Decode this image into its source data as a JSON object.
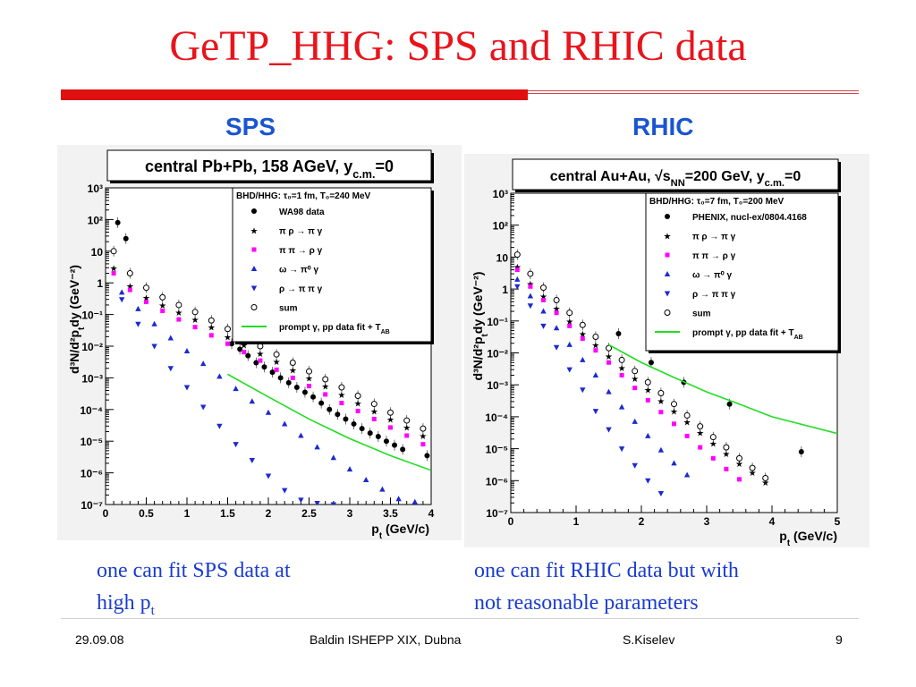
{
  "slide": {
    "title": "GeTP_HHG: SPS and RHIC data",
    "left_label": "SPS",
    "right_label": "RHIC",
    "left_caption_line1": "one can fit SPS data at",
    "left_caption_line2": "high p",
    "left_caption_sub": "t",
    "right_caption_line1": "one can fit RHIC data but with",
    "right_caption_line2": "not reasonable parameters",
    "colors": {
      "title": "#e8141c",
      "label": "#1a55d0",
      "caption": "#1a3cd0"
    }
  },
  "footer": {
    "date": "29.09.08",
    "event": "Baldin ISHEPP XIX, Dubna",
    "author": "S.Kiselev",
    "page": "9"
  },
  "chart_data": [
    {
      "type": "scatter",
      "title": "central Pb+Pb, 158 AGeV, y",
      "title_sub": "c.m.",
      "title_end": "=0",
      "xlabel": "p",
      "xlabel_sub": "t",
      "xlabel_unit": "(GeV/c)",
      "ylabel": "d³N/d²p",
      "ylabel_sub": "t",
      "ylabel_end": "dy (GeV⁻²)",
      "log_y": true,
      "xlim": [
        0,
        4
      ],
      "ylim_exp": [
        -7,
        3
      ],
      "x_ticks": [
        "0",
        "0.5",
        "1",
        "1.5",
        "2",
        "2.5",
        "3",
        "3.5",
        "4"
      ],
      "y_ticks": [
        "10⁻⁷",
        "10⁻⁶",
        "10⁻⁵",
        "10⁻⁴",
        "10⁻³",
        "10⁻²",
        "10⁻¹",
        "1",
        "10",
        "10²",
        "10³"
      ],
      "legend_header": "BHD/HHG: τ₀=1 fm, T₀=240 MeV",
      "series": [
        {
          "name": "WA98 data",
          "marker": "dot",
          "color": "#000000",
          "x": [
            0.15,
            0.25,
            1.55,
            1.65,
            1.75,
            1.85,
            1.95,
            2.05,
            2.15,
            2.25,
            2.35,
            2.45,
            2.55,
            2.65,
            2.75,
            2.85,
            2.95,
            3.05,
            3.15,
            3.25,
            3.35,
            3.45,
            3.55,
            3.65,
            3.95
          ],
          "y": [
            80,
            25,
            0.012,
            0.008,
            0.005,
            0.003,
            0.0022,
            0.0015,
            0.001,
            0.0007,
            0.0005,
            0.00035,
            0.00025,
            0.00016,
            0.0001,
            7e-05,
            5e-05,
            3.5e-05,
            2.5e-05,
            1.8e-05,
            1.4e-05,
            1e-05,
            7.5e-06,
            5.5e-06,
            3.5e-06
          ]
        },
        {
          "name": "π ρ → π γ",
          "marker": "star",
          "color": "#ff00ff",
          "x": [
            0.1,
            0.3,
            0.5,
            0.7,
            0.9,
            1.1,
            1.3,
            1.5,
            1.7,
            1.9,
            2.1,
            2.3,
            2.5,
            2.7,
            2.9,
            3.1,
            3.3,
            3.5,
            3.7,
            3.9
          ],
          "y": [
            3,
            0.8,
            0.35,
            0.2,
            0.12,
            0.07,
            0.04,
            0.02,
            0.011,
            0.006,
            0.0033,
            0.0018,
            0.001,
            0.00055,
            0.0003,
            0.00016,
            9e-05,
            5e-05,
            2.8e-05,
            1.5e-05
          ]
        },
        {
          "name": "π π → ρ γ",
          "marker": "square",
          "color": "#ff00ff",
          "x": [
            0.1,
            0.3,
            0.5,
            0.7,
            0.9,
            1.1,
            1.3,
            1.5,
            1.7,
            1.9,
            2.1,
            2.3,
            2.5,
            2.7,
            2.9,
            3.1,
            3.3,
            3.5,
            3.7,
            3.9
          ],
          "y": [
            2,
            0.6,
            0.25,
            0.13,
            0.07,
            0.04,
            0.022,
            0.012,
            0.0065,
            0.0035,
            0.0018,
            0.001,
            0.00055,
            0.0003,
            0.00016,
            9e-05,
            5e-05,
            2.7e-05,
            1.5e-05,
            8e-06
          ]
        },
        {
          "name": "ω → π⁰ γ",
          "marker": "triangle-up",
          "color": "#1a2ad0",
          "x": [
            0.2,
            0.4,
            0.6,
            0.8,
            1.0,
            1.2,
            1.4,
            1.6,
            1.8,
            2.0,
            2.2,
            2.4,
            2.6,
            2.8,
            3.0,
            3.2,
            3.4,
            3.6,
            3.8
          ],
          "y": [
            0.5,
            0.15,
            0.05,
            0.018,
            0.007,
            0.0028,
            0.0011,
            0.00045,
            0.00018,
            8e-05,
            3.5e-05,
            1.5e-05,
            6.5e-06,
            3e-06,
            1.3e-06,
            6e-07,
            3e-07,
            1.5e-07,
            1.2e-07
          ]
        },
        {
          "name": "ρ → π π γ",
          "marker": "triangle-down",
          "color": "#1a2ad0",
          "x": [
            0.2,
            0.4,
            0.6,
            0.8,
            1.0,
            1.2,
            1.4,
            1.6,
            1.8,
            2.0,
            2.2,
            2.4,
            2.6,
            2.8
          ],
          "y": [
            0.3,
            0.05,
            0.01,
            0.002,
            0.0005,
            0.00012,
            3e-05,
            8e-06,
            2.5e-06,
            8e-07,
            2.8e-07,
            1.4e-07,
            1.1e-07,
            1e-07
          ]
        },
        {
          "name": "sum",
          "marker": "circle-open",
          "color": "#000000",
          "x": [
            0.1,
            0.3,
            0.5,
            0.7,
            0.9,
            1.1,
            1.3,
            1.5,
            1.7,
            1.9,
            2.1,
            2.3,
            2.5,
            2.7,
            2.9,
            3.1,
            3.3,
            3.5,
            3.7,
            3.9
          ],
          "y": [
            10,
            2,
            0.7,
            0.35,
            0.2,
            0.12,
            0.065,
            0.035,
            0.019,
            0.01,
            0.0055,
            0.003,
            0.0016,
            0.0009,
            0.0005,
            0.00027,
            0.00015,
            8e-05,
            4.5e-05,
            2.5e-05
          ]
        },
        {
          "name": "prompt γ, pp data fit + T",
          "name_sub": "AB",
          "marker": "line",
          "color": "#22dd22",
          "x": [
            1.5,
            2.0,
            2.5,
            3.0,
            3.5,
            4.0
          ],
          "y": [
            0.0013,
            0.00025,
            5e-05,
            1.2e-05,
            3.5e-06,
            1.2e-06
          ]
        }
      ]
    },
    {
      "type": "scatter",
      "title": "central Au+Au, √s",
      "title_sub": "NN",
      "title_end": "=200 GeV, y",
      "title_sub2": "c.m.",
      "title_end2": "=0",
      "xlabel": "p",
      "xlabel_sub": "t",
      "xlabel_unit": "(GeV/c)",
      "ylabel": "d³N/d²p",
      "ylabel_sub": "t",
      "ylabel_end": "dy (GeV⁻²)",
      "log_y": true,
      "xlim": [
        0,
        5
      ],
      "ylim_exp": [
        -7,
        3
      ],
      "x_ticks": [
        "0",
        "1",
        "2",
        "3",
        "4",
        "5"
      ],
      "y_ticks": [
        "10⁻⁷",
        "10⁻⁶",
        "10⁻⁵",
        "10⁻⁴",
        "10⁻³",
        "10⁻²",
        "10⁻¹",
        "1",
        "10",
        "10²",
        "10³"
      ],
      "legend_header": "BHD/HHG: τ₀=7 fm, T₀=200 MeV",
      "series": [
        {
          "name": "PHENIX, nucl-ex/0804.4168",
          "marker": "dot",
          "color": "#000000",
          "x": [
            1.65,
            2.15,
            2.65,
            3.35,
            4.45
          ],
          "y": [
            0.04,
            0.005,
            0.0012,
            0.00025,
            8e-06
          ]
        },
        {
          "name": "π ρ → π γ",
          "marker": "star",
          "color": "#ff00ff",
          "x": [
            0.1,
            0.3,
            0.5,
            0.7,
            0.9,
            1.1,
            1.3,
            1.5,
            1.7,
            1.9,
            2.1,
            2.3,
            2.5,
            2.7,
            2.9,
            3.1,
            3.3,
            3.5,
            3.7,
            3.9
          ],
          "y": [
            5,
            1.5,
            0.6,
            0.25,
            0.1,
            0.04,
            0.018,
            0.008,
            0.0035,
            0.0016,
            0.0007,
            0.00032,
            0.00015,
            7e-05,
            3.2e-05,
            1.5e-05,
            7e-06,
            3.5e-06,
            1.8e-06,
            9e-07
          ]
        },
        {
          "name": "π π → ρ γ",
          "marker": "square",
          "color": "#ff00ff",
          "x": [
            0.1,
            0.3,
            0.5,
            0.7,
            0.9,
            1.1,
            1.3,
            1.5,
            1.7,
            1.9,
            2.1,
            2.3,
            2.5,
            2.7,
            2.9,
            3.1,
            3.3,
            3.5
          ],
          "y": [
            4,
            1.2,
            0.45,
            0.18,
            0.07,
            0.028,
            0.012,
            0.005,
            0.002,
            0.0008,
            0.00033,
            0.00014,
            6e-05,
            2.5e-05,
            1.1e-05,
            5e-06,
            2.3e-06,
            1.1e-06
          ]
        },
        {
          "name": "ω → π⁰ γ",
          "marker": "triangle-up",
          "color": "#1a2ad0",
          "x": [
            0.1,
            0.3,
            0.5,
            0.7,
            0.9,
            1.1,
            1.3,
            1.5,
            1.7,
            1.9,
            2.1,
            2.3,
            2.5,
            2.7
          ],
          "y": [
            2,
            0.6,
            0.2,
            0.06,
            0.018,
            0.006,
            0.002,
            0.0006,
            0.0002,
            7e-05,
            2.5e-05,
            9e-06,
            3.5e-06,
            1.5e-06
          ]
        },
        {
          "name": "ρ → π π γ",
          "marker": "triangle-down",
          "color": "#1a2ad0",
          "x": [
            0.1,
            0.3,
            0.5,
            0.7,
            0.9,
            1.1,
            1.3,
            1.5,
            1.7,
            1.9,
            2.1,
            2.3
          ],
          "y": [
            1.2,
            0.3,
            0.07,
            0.015,
            0.003,
            0.0007,
            0.00015,
            4e-05,
            1e-05,
            3e-06,
            1e-06,
            4e-07
          ]
        },
        {
          "name": "sum",
          "marker": "circle-open",
          "color": "#000000",
          "x": [
            0.1,
            0.3,
            0.5,
            0.7,
            0.9,
            1.1,
            1.3,
            1.5,
            1.7,
            1.9,
            2.1,
            2.3,
            2.5,
            2.7,
            2.9,
            3.1,
            3.3,
            3.5,
            3.7,
            3.9
          ],
          "y": [
            12,
            3,
            1.1,
            0.45,
            0.18,
            0.075,
            0.032,
            0.014,
            0.006,
            0.0027,
            0.0012,
            0.00055,
            0.00025,
            0.00011,
            5e-05,
            2.3e-05,
            1.1e-05,
            5e-06,
            2.5e-06,
            1.2e-06
          ]
        },
        {
          "name": "prompt γ, pp data fit + T",
          "name_sub": "AB",
          "marker": "line",
          "color": "#22dd22",
          "x": [
            1.5,
            2.0,
            2.5,
            3.0,
            3.5,
            4.0,
            5.0
          ],
          "y": [
            0.018,
            0.005,
            0.0017,
            0.0006,
            0.00025,
            0.0001,
            3e-05
          ]
        }
      ]
    }
  ]
}
